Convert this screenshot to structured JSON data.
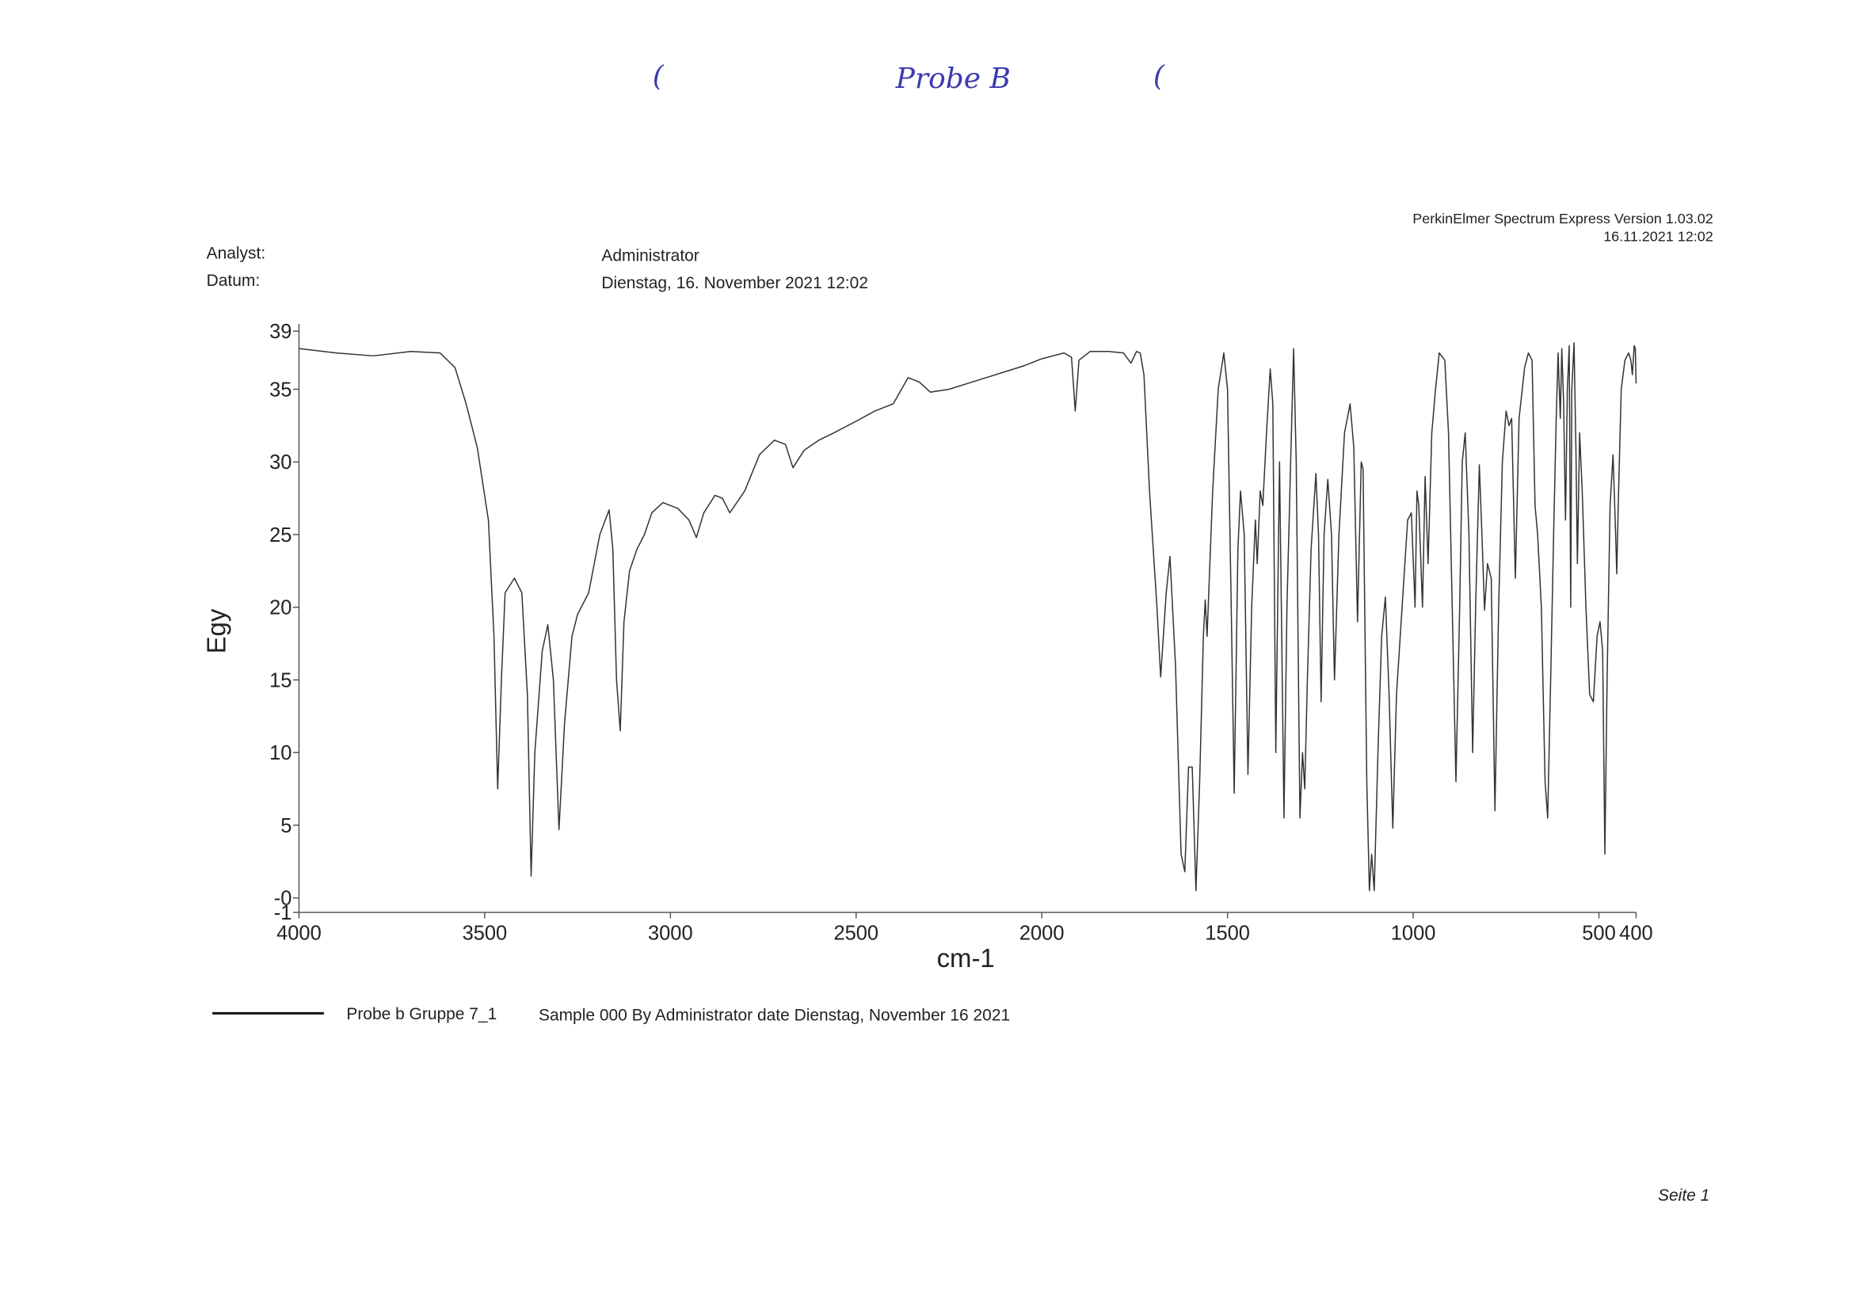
{
  "header": {
    "handwritten_title": "Probe B",
    "handwritten_marks": [
      "(",
      "("
    ],
    "analyst_label": "Analyst:",
    "analyst": "Administrator",
    "date_label": "Datum:",
    "date": "Dienstag, 16. November 2021 12:02",
    "software": "PerkinElmer Spectrum Express Version 1.03.02",
    "timestamp": "16.11.2021 12:02"
  },
  "chart_data": {
    "type": "line",
    "xlabel": "cm-1",
    "ylabel": "Egy",
    "color": "#333333",
    "xlim": [
      4000,
      400
    ],
    "ylim": [
      -1,
      39
    ],
    "xticks": [
      4000,
      3500,
      3000,
      2500,
      2000,
      1500,
      1000,
      500,
      400
    ],
    "yticks": [
      39,
      35,
      30,
      25,
      20,
      15,
      10,
      5,
      {
        "value": 0,
        "label": "-0"
      },
      -1
    ],
    "x": [
      4000,
      3900,
      3800,
      3700,
      3620,
      3580,
      3550,
      3520,
      3490,
      3475,
      3465,
      3455,
      3445,
      3420,
      3400,
      3385,
      3375,
      3365,
      3345,
      3330,
      3315,
      3300,
      3285,
      3265,
      3250,
      3220,
      3190,
      3165,
      3155,
      3145,
      3135,
      3125,
      3110,
      3090,
      3070,
      3050,
      3020,
      2980,
      2950,
      2930,
      2910,
      2880,
      2860,
      2840,
      2800,
      2760,
      2720,
      2690,
      2670,
      2640,
      2600,
      2560,
      2500,
      2450,
      2400,
      2360,
      2330,
      2300,
      2250,
      2200,
      2150,
      2100,
      2050,
      2000,
      1970,
      1940,
      1920,
      1910,
      1900,
      1870,
      1820,
      1780,
      1760,
      1745,
      1735,
      1725,
      1710,
      1690,
      1680,
      1665,
      1655,
      1640,
      1625,
      1615,
      1605,
      1595,
      1585,
      1575,
      1565,
      1560,
      1555,
      1540,
      1525,
      1510,
      1500,
      1490,
      1482,
      1472,
      1465,
      1455,
      1445,
      1435,
      1425,
      1420,
      1412,
      1405,
      1395,
      1385,
      1378,
      1370,
      1365,
      1360,
      1355,
      1348,
      1340,
      1330,
      1322,
      1315,
      1305,
      1298,
      1292,
      1285,
      1275,
      1262,
      1255,
      1248,
      1240,
      1230,
      1220,
      1212,
      1200,
      1185,
      1170,
      1160,
      1150,
      1140,
      1135,
      1125,
      1118,
      1112,
      1105,
      1095,
      1085,
      1075,
      1065,
      1055,
      1045,
      1030,
      1015,
      1005,
      995,
      990,
      985,
      975,
      968,
      960,
      950,
      940,
      930,
      915,
      905,
      895,
      885,
      875,
      868,
      860,
      850,
      840,
      832,
      822,
      815,
      808,
      800,
      790,
      780,
      770,
      760,
      750,
      742,
      735,
      725,
      715,
      700,
      690,
      680,
      672,
      665,
      655,
      645,
      638,
      630,
      622,
      615,
      610,
      604,
      600,
      595,
      590,
      585,
      580,
      576,
      573,
      567,
      562,
      558,
      552,
      545,
      535,
      525,
      515,
      505,
      497,
      490,
      484,
      478,
      470,
      462,
      455,
      452,
      448,
      440,
      430,
      420,
      414,
      410,
      405,
      402,
      400
    ],
    "values": [
      37.8,
      37.5,
      37.3,
      37.6,
      37.5,
      36.5,
      34,
      31,
      26,
      18,
      7.5,
      15,
      21,
      22,
      21,
      14,
      1.5,
      10,
      17,
      18.8,
      15,
      4.7,
      12,
      18,
      19.5,
      21,
      25,
      26.7,
      24,
      15,
      11.5,
      19,
      22.5,
      24,
      25,
      26.5,
      27.2,
      26.8,
      26,
      24.8,
      26.5,
      27.7,
      27.5,
      26.5,
      28,
      30.5,
      31.5,
      31.2,
      29.6,
      30.8,
      31.5,
      32,
      32.8,
      33.5,
      34,
      35.8,
      35.5,
      34.8,
      35,
      35.4,
      35.8,
      36.2,
      36.6,
      37.1,
      37.3,
      37.5,
      37.2,
      33.5,
      37,
      37.6,
      37.6,
      37.5,
      36.8,
      37.6,
      37.5,
      36,
      28,
      20,
      15.2,
      21,
      23.5,
      16,
      3,
      1.8,
      9,
      9,
      0.5,
      8,
      18,
      20.5,
      18,
      28,
      35,
      37.5,
      35,
      20,
      7.2,
      24,
      28,
      25,
      8.5,
      20,
      26,
      23,
      28,
      27,
      32,
      36.4,
      34,
      10,
      20,
      30,
      20,
      5.5,
      20,
      30,
      37.8,
      30,
      5.5,
      10,
      7.5,
      15,
      24,
      29.2,
      25,
      13.5,
      25,
      28.8,
      25,
      15,
      25,
      32,
      34,
      31,
      19,
      30,
      29.5,
      8,
      0.5,
      3,
      0.5,
      10,
      18,
      20.7,
      14,
      4.8,
      14,
      20,
      26,
      26.5,
      20,
      28,
      27,
      20,
      29,
      23,
      32,
      35,
      37.5,
      37,
      32,
      20,
      8,
      20,
      30,
      32,
      25,
      10,
      20,
      29.8,
      25,
      19.8,
      23,
      22,
      6,
      20,
      30,
      33.5,
      32.5,
      33,
      22,
      33,
      36.5,
      37.5,
      37,
      27,
      25,
      20,
      8,
      5.5,
      15,
      25,
      33,
      37.5,
      33,
      37.8,
      34,
      26,
      35,
      38,
      20,
      35,
      38.2,
      31,
      23,
      32,
      28,
      20,
      14,
      13.5,
      18,
      19,
      17,
      3,
      15,
      27,
      30.5,
      25,
      22.3,
      27,
      35,
      37,
      37.5,
      37,
      36,
      38,
      37.8,
      35.4
    ],
    "legend": {
      "name": "Probe b Gruppe 7_1",
      "description": "Sample 000 By Administrator date Dienstag, November 16 2021"
    }
  },
  "footer": {
    "page": "Seite 1"
  }
}
